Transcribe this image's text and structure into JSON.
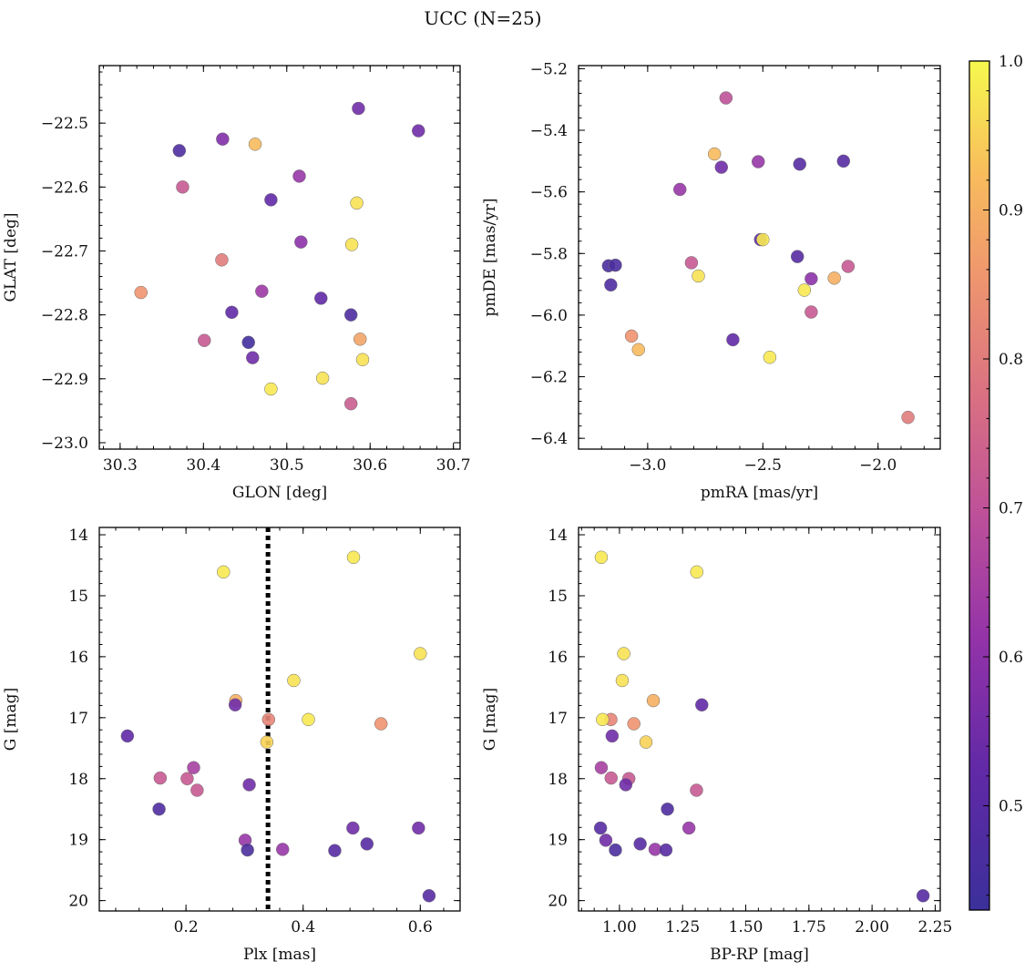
{
  "title": "UCC (N=25)",
  "colorbar": {
    "range": [
      0.43,
      1.0
    ],
    "ticks": [
      0.5,
      0.6,
      0.7,
      0.8,
      0.9,
      1.0
    ],
    "tick_labels": [
      "0.5",
      "0.6",
      "0.7",
      "0.8",
      "0.9",
      "1.0"
    ]
  },
  "chart_data": [
    {
      "type": "scatter",
      "xlabel": "GLON [deg]",
      "ylabel": "GLAT [deg]",
      "xlim": [
        30.275,
        30.708
      ],
      "ylim": [
        -23.01,
        -22.41
      ],
      "y_inverted": false,
      "xticks": [
        30.3,
        30.4,
        30.5,
        30.6,
        30.7
      ],
      "xtick_labels": [
        "30.3",
        "30.4",
        "30.5",
        "30.6",
        "30.7"
      ],
      "yticks": [
        -23.0,
        -22.9,
        -22.8,
        -22.7,
        -22.6,
        -22.5
      ],
      "ytick_labels": [
        "−23.0",
        "−22.9",
        "−22.8",
        "−22.7",
        "−22.6",
        "−22.5"
      ],
      "points": [
        {
          "x": 30.586,
          "y": -22.477,
          "c": 0.55
        },
        {
          "x": 30.658,
          "y": -22.512,
          "c": 0.55
        },
        {
          "x": 30.371,
          "y": -22.543,
          "c": 0.48
        },
        {
          "x": 30.423,
          "y": -22.525,
          "c": 0.58
        },
        {
          "x": 30.462,
          "y": -22.533,
          "c": 0.92
        },
        {
          "x": 30.375,
          "y": -22.6,
          "c": 0.72
        },
        {
          "x": 30.515,
          "y": -22.583,
          "c": 0.62
        },
        {
          "x": 30.481,
          "y": -22.62,
          "c": 0.52
        },
        {
          "x": 30.584,
          "y": -22.625,
          "c": 0.97
        },
        {
          "x": 30.517,
          "y": -22.686,
          "c": 0.6
        },
        {
          "x": 30.578,
          "y": -22.69,
          "c": 0.97
        },
        {
          "x": 30.422,
          "y": -22.714,
          "c": 0.8
        },
        {
          "x": 30.325,
          "y": -22.765,
          "c": 0.85
        },
        {
          "x": 30.47,
          "y": -22.763,
          "c": 0.63
        },
        {
          "x": 30.541,
          "y": -22.774,
          "c": 0.52
        },
        {
          "x": 30.434,
          "y": -22.796,
          "c": 0.52
        },
        {
          "x": 30.577,
          "y": -22.8,
          "c": 0.48
        },
        {
          "x": 30.401,
          "y": -22.84,
          "c": 0.72
        },
        {
          "x": 30.454,
          "y": -22.843,
          "c": 0.45
        },
        {
          "x": 30.588,
          "y": -22.838,
          "c": 0.88
        },
        {
          "x": 30.459,
          "y": -22.867,
          "c": 0.55
        },
        {
          "x": 30.591,
          "y": -22.87,
          "c": 0.97
        },
        {
          "x": 30.543,
          "y": -22.899,
          "c": 0.97
        },
        {
          "x": 30.481,
          "y": -22.916,
          "c": 0.98
        },
        {
          "x": 30.577,
          "y": -22.939,
          "c": 0.73
        }
      ]
    },
    {
      "type": "scatter",
      "xlabel": "pmRA [mas/yr]",
      "ylabel": "pmDE [mas/yr]",
      "xlim": [
        -3.3,
        -1.73
      ],
      "ylim": [
        -6.435,
        -5.19
      ],
      "y_inverted": false,
      "xticks": [
        -3.0,
        -2.5,
        -2.0
      ],
      "xtick_labels": [
        "−3.0",
        "−2.5",
        "−2.0"
      ],
      "yticks": [
        -6.4,
        -6.2,
        -6.0,
        -5.8,
        -5.6,
        -5.4,
        -5.2
      ],
      "ytick_labels": [
        "−6.4",
        "−6.2",
        "−6.0",
        "−5.8",
        "−5.6",
        "−5.4",
        "−5.2"
      ],
      "points": [
        {
          "x": -2.66,
          "y": -5.295,
          "c": 0.7
        },
        {
          "x": -2.71,
          "y": -5.477,
          "c": 0.92
        },
        {
          "x": -2.68,
          "y": -5.52,
          "c": 0.55
        },
        {
          "x": -2.52,
          "y": -5.502,
          "c": 0.62
        },
        {
          "x": -2.34,
          "y": -5.51,
          "c": 0.5
        },
        {
          "x": -2.15,
          "y": -5.5,
          "c": 0.5
        },
        {
          "x": -2.86,
          "y": -5.592,
          "c": 0.62
        },
        {
          "x": -2.51,
          "y": -5.755,
          "c": 0.52
        },
        {
          "x": -2.5,
          "y": -5.755,
          "c": 0.98
        },
        {
          "x": -2.35,
          "y": -5.81,
          "c": 0.5
        },
        {
          "x": -3.17,
          "y": -5.84,
          "c": 0.47
        },
        {
          "x": -3.14,
          "y": -5.838,
          "c": 0.47
        },
        {
          "x": -2.81,
          "y": -5.83,
          "c": 0.72
        },
        {
          "x": -2.78,
          "y": -5.873,
          "c": 0.97
        },
        {
          "x": -2.13,
          "y": -5.842,
          "c": 0.72
        },
        {
          "x": -2.19,
          "y": -5.88,
          "c": 0.9
        },
        {
          "x": -2.29,
          "y": -5.882,
          "c": 0.6
        },
        {
          "x": -3.16,
          "y": -5.902,
          "c": 0.48
        },
        {
          "x": -2.32,
          "y": -5.919,
          "c": 0.98
        },
        {
          "x": -2.29,
          "y": -5.99,
          "c": 0.72
        },
        {
          "x": -3.07,
          "y": -6.068,
          "c": 0.85
        },
        {
          "x": -2.63,
          "y": -6.08,
          "c": 0.52
        },
        {
          "x": -3.04,
          "y": -6.112,
          "c": 0.92
        },
        {
          "x": -2.47,
          "y": -6.137,
          "c": 0.98
        },
        {
          "x": -1.87,
          "y": -6.332,
          "c": 0.8
        }
      ]
    },
    {
      "type": "scatter",
      "xlabel": "Plx [mas]",
      "ylabel": "G [mag]",
      "xlim": [
        0.052,
        0.668
      ],
      "ylim": [
        13.88,
        20.17
      ],
      "y_inverted": true,
      "vline": 0.34,
      "xticks": [
        0.2,
        0.4,
        0.6
      ],
      "xtick_labels": [
        "0.2",
        "0.4",
        "0.6"
      ],
      "yticks": [
        14,
        15,
        16,
        17,
        18,
        19,
        20
      ],
      "ytick_labels": [
        "14",
        "15",
        "16",
        "17",
        "18",
        "19",
        "20"
      ],
      "points": [
        {
          "x": 0.486,
          "y": 14.37,
          "c": 0.98
        },
        {
          "x": 0.264,
          "y": 14.61,
          "c": 0.98
        },
        {
          "x": 0.6,
          "y": 15.95,
          "c": 0.97
        },
        {
          "x": 0.384,
          "y": 16.39,
          "c": 0.97
        },
        {
          "x": 0.285,
          "y": 16.72,
          "c": 0.9
        },
        {
          "x": 0.284,
          "y": 16.79,
          "c": 0.55
        },
        {
          "x": 0.341,
          "y": 17.03,
          "c": 0.82
        },
        {
          "x": 0.409,
          "y": 17.03,
          "c": 0.98
        },
        {
          "x": 0.533,
          "y": 17.1,
          "c": 0.85
        },
        {
          "x": 0.1,
          "y": 17.3,
          "c": 0.52
        },
        {
          "x": 0.338,
          "y": 17.4,
          "c": 0.95
        },
        {
          "x": 0.213,
          "y": 17.82,
          "c": 0.65
        },
        {
          "x": 0.156,
          "y": 17.99,
          "c": 0.72
        },
        {
          "x": 0.202,
          "y": 18.0,
          "c": 0.72
        },
        {
          "x": 0.308,
          "y": 18.1,
          "c": 0.55
        },
        {
          "x": 0.219,
          "y": 18.19,
          "c": 0.72
        },
        {
          "x": 0.154,
          "y": 18.5,
          "c": 0.48
        },
        {
          "x": 0.485,
          "y": 18.81,
          "c": 0.55
        },
        {
          "x": 0.597,
          "y": 18.81,
          "c": 0.55
        },
        {
          "x": 0.301,
          "y": 19.01,
          "c": 0.62
        },
        {
          "x": 0.509,
          "y": 19.07,
          "c": 0.5
        },
        {
          "x": 0.365,
          "y": 19.16,
          "c": 0.62
        },
        {
          "x": 0.305,
          "y": 19.17,
          "c": 0.47
        },
        {
          "x": 0.454,
          "y": 19.18,
          "c": 0.5
        },
        {
          "x": 0.615,
          "y": 19.92,
          "c": 0.5
        }
      ]
    },
    {
      "type": "scatter",
      "xlabel": "BP-RP [mag]",
      "ylabel": "G [mag]",
      "xlim": [
        0.838,
        2.27
      ],
      "ylim": [
        13.88,
        20.17
      ],
      "y_inverted": true,
      "xticks": [
        1.0,
        1.25,
        1.5,
        1.75,
        2.0,
        2.25
      ],
      "xtick_labels": [
        "1.00",
        "1.25",
        "1.50",
        "1.75",
        "2.00",
        "2.25"
      ],
      "yticks": [
        14,
        15,
        16,
        17,
        18,
        19,
        20
      ],
      "ytick_labels": [
        "14",
        "15",
        "16",
        "17",
        "18",
        "19",
        "20"
      ],
      "points": [
        {
          "x": 0.928,
          "y": 14.37,
          "c": 0.98
        },
        {
          "x": 1.306,
          "y": 14.61,
          "c": 0.98
        },
        {
          "x": 1.017,
          "y": 15.95,
          "c": 0.97
        },
        {
          "x": 1.011,
          "y": 16.39,
          "c": 0.97
        },
        {
          "x": 1.134,
          "y": 16.72,
          "c": 0.9
        },
        {
          "x": 1.326,
          "y": 16.79,
          "c": 0.52
        },
        {
          "x": 0.966,
          "y": 17.03,
          "c": 0.82
        },
        {
          "x": 0.933,
          "y": 17.03,
          "c": 0.98
        },
        {
          "x": 1.057,
          "y": 17.1,
          "c": 0.85
        },
        {
          "x": 0.971,
          "y": 17.3,
          "c": 0.55
        },
        {
          "x": 1.105,
          "y": 17.4,
          "c": 0.95
        },
        {
          "x": 0.928,
          "y": 17.82,
          "c": 0.65
        },
        {
          "x": 0.967,
          "y": 17.99,
          "c": 0.72
        },
        {
          "x": 1.037,
          "y": 18.0,
          "c": 0.72
        },
        {
          "x": 1.025,
          "y": 18.1,
          "c": 0.55
        },
        {
          "x": 1.305,
          "y": 18.19,
          "c": 0.72
        },
        {
          "x": 1.19,
          "y": 18.5,
          "c": 0.48
        },
        {
          "x": 1.275,
          "y": 18.81,
          "c": 0.62
        },
        {
          "x": 0.925,
          "y": 18.81,
          "c": 0.5
        },
        {
          "x": 0.946,
          "y": 19.01,
          "c": 0.55
        },
        {
          "x": 1.082,
          "y": 19.07,
          "c": 0.5
        },
        {
          "x": 1.141,
          "y": 19.16,
          "c": 0.62
        },
        {
          "x": 0.984,
          "y": 19.17,
          "c": 0.47
        },
        {
          "x": 1.184,
          "y": 19.17,
          "c": 0.5
        },
        {
          "x": 2.202,
          "y": 19.92,
          "c": 0.5
        }
      ]
    }
  ]
}
